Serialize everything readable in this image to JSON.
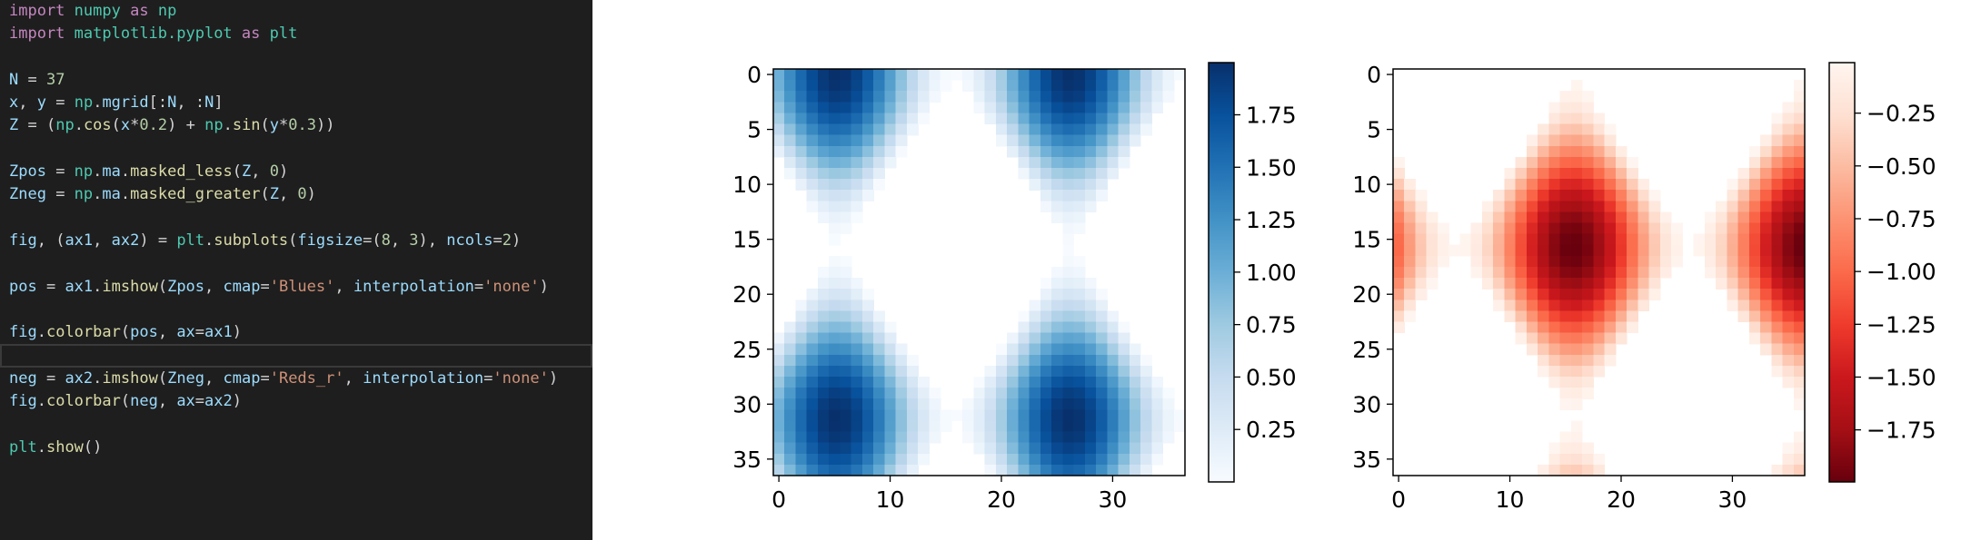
{
  "editor": {
    "lines": [
      [
        [
          "kw",
          "import"
        ],
        [
          "id",
          " "
        ],
        [
          "mod",
          "numpy"
        ],
        [
          "id",
          " "
        ],
        [
          "kw",
          "as"
        ],
        [
          "id",
          " "
        ],
        [
          "mod",
          "np"
        ]
      ],
      [
        [
          "kw",
          "import"
        ],
        [
          "id",
          " "
        ],
        [
          "mod",
          "matplotlib.pyplot"
        ],
        [
          "id",
          " "
        ],
        [
          "kw",
          "as"
        ],
        [
          "id",
          " "
        ],
        [
          "mod",
          "plt"
        ]
      ],
      [],
      [
        [
          "var",
          "N"
        ],
        [
          "op",
          " = "
        ],
        [
          "num",
          "37"
        ]
      ],
      [
        [
          "var",
          "x"
        ],
        [
          "op",
          ", "
        ],
        [
          "var",
          "y"
        ],
        [
          "op",
          " = "
        ],
        [
          "mod",
          "np"
        ],
        [
          "op",
          "."
        ],
        [
          "var",
          "mgrid"
        ],
        [
          "op",
          "[:"
        ],
        [
          "var",
          "N"
        ],
        [
          "op",
          ", :"
        ],
        [
          "var",
          "N"
        ],
        [
          "op",
          "]"
        ]
      ],
      [
        [
          "var",
          "Z"
        ],
        [
          "op",
          " = ("
        ],
        [
          "mod",
          "np"
        ],
        [
          "op",
          "."
        ],
        [
          "fn",
          "cos"
        ],
        [
          "op",
          "("
        ],
        [
          "var",
          "x"
        ],
        [
          "op",
          "*"
        ],
        [
          "num",
          "0.2"
        ],
        [
          "op",
          ") + "
        ],
        [
          "mod",
          "np"
        ],
        [
          "op",
          "."
        ],
        [
          "fn",
          "sin"
        ],
        [
          "op",
          "("
        ],
        [
          "var",
          "y"
        ],
        [
          "op",
          "*"
        ],
        [
          "num",
          "0.3"
        ],
        [
          "op",
          "))"
        ]
      ],
      [],
      [
        [
          "var",
          "Zpos"
        ],
        [
          "op",
          " = "
        ],
        [
          "mod",
          "np"
        ],
        [
          "op",
          "."
        ],
        [
          "var",
          "ma"
        ],
        [
          "op",
          "."
        ],
        [
          "fn",
          "masked_less"
        ],
        [
          "op",
          "("
        ],
        [
          "var",
          "Z"
        ],
        [
          "op",
          ", "
        ],
        [
          "num",
          "0"
        ],
        [
          "op",
          ")"
        ]
      ],
      [
        [
          "var",
          "Zneg"
        ],
        [
          "op",
          " = "
        ],
        [
          "mod",
          "np"
        ],
        [
          "op",
          "."
        ],
        [
          "var",
          "ma"
        ],
        [
          "op",
          "."
        ],
        [
          "fn",
          "masked_greater"
        ],
        [
          "op",
          "("
        ],
        [
          "var",
          "Z"
        ],
        [
          "op",
          ", "
        ],
        [
          "num",
          "0"
        ],
        [
          "op",
          ")"
        ]
      ],
      [],
      [
        [
          "var",
          "fig"
        ],
        [
          "op",
          ", ("
        ],
        [
          "var",
          "ax1"
        ],
        [
          "op",
          ", "
        ],
        [
          "var",
          "ax2"
        ],
        [
          "op",
          ") = "
        ],
        [
          "mod",
          "plt"
        ],
        [
          "op",
          "."
        ],
        [
          "fn",
          "subplots"
        ],
        [
          "op",
          "("
        ],
        [
          "var",
          "figsize"
        ],
        [
          "op",
          "=("
        ],
        [
          "num",
          "8"
        ],
        [
          "op",
          ", "
        ],
        [
          "num",
          "3"
        ],
        [
          "op",
          "), "
        ],
        [
          "var",
          "ncols"
        ],
        [
          "op",
          "="
        ],
        [
          "num",
          "2"
        ],
        [
          "op",
          ")"
        ]
      ],
      [],
      [
        [
          "var",
          "pos"
        ],
        [
          "op",
          " = "
        ],
        [
          "var",
          "ax1"
        ],
        [
          "op",
          "."
        ],
        [
          "fn",
          "imshow"
        ],
        [
          "op",
          "("
        ],
        [
          "var",
          "Zpos"
        ],
        [
          "op",
          ", "
        ],
        [
          "var",
          "cmap"
        ],
        [
          "op",
          "="
        ],
        [
          "str",
          "'Blues'"
        ],
        [
          "op",
          ", "
        ],
        [
          "var",
          "interpolation"
        ],
        [
          "op",
          "="
        ],
        [
          "str",
          "'none'"
        ],
        [
          "op",
          ")"
        ]
      ],
      [],
      [
        [
          "var",
          "fig"
        ],
        [
          "op",
          "."
        ],
        [
          "fn",
          "colorbar"
        ],
        [
          "op",
          "("
        ],
        [
          "var",
          "pos"
        ],
        [
          "op",
          ", "
        ],
        [
          "var",
          "ax"
        ],
        [
          "op",
          "="
        ],
        [
          "var",
          "ax1"
        ],
        [
          "op",
          ")"
        ]
      ],
      [],
      [
        [
          "var",
          "neg"
        ],
        [
          "op",
          " = "
        ],
        [
          "var",
          "ax2"
        ],
        [
          "op",
          "."
        ],
        [
          "fn",
          "imshow"
        ],
        [
          "op",
          "("
        ],
        [
          "var",
          "Zneg"
        ],
        [
          "op",
          ", "
        ],
        [
          "var",
          "cmap"
        ],
        [
          "op",
          "="
        ],
        [
          "str",
          "'Reds_r'"
        ],
        [
          "op",
          ", "
        ],
        [
          "var",
          "interpolation"
        ],
        [
          "op",
          "="
        ],
        [
          "str",
          "'none'"
        ],
        [
          "op",
          ")"
        ]
      ],
      [
        [
          "var",
          "fig"
        ],
        [
          "op",
          "."
        ],
        [
          "fn",
          "colorbar"
        ],
        [
          "op",
          "("
        ],
        [
          "var",
          "neg"
        ],
        [
          "op",
          ", "
        ],
        [
          "var",
          "ax"
        ],
        [
          "op",
          "="
        ],
        [
          "var",
          "ax2"
        ],
        [
          "op",
          ")"
        ]
      ],
      [],
      [
        [
          "mod",
          "plt"
        ],
        [
          "op",
          "."
        ],
        [
          "fn",
          "show"
        ],
        [
          "op",
          "()"
        ]
      ]
    ],
    "active_line": 15
  },
  "chart_data": [
    {
      "type": "heatmap",
      "title": "",
      "grid_size": 37,
      "formula": "Z = cos(x*0.2) + sin(y*0.3); x = row index, y = column index; values < 0 masked",
      "mask": "less_than_zero",
      "cmap": "Blues",
      "xticks": [
        "0",
        "10",
        "20",
        "30"
      ],
      "yticks": [
        "0",
        "5",
        "10",
        "15",
        "20",
        "25",
        "30",
        "35"
      ],
      "xlim": [
        -0.5,
        36.5
      ],
      "ylim": [
        36.5,
        -0.5
      ],
      "colorbar": {
        "range": [
          0,
          1.9987
        ],
        "ticks": [
          0.25,
          0.5,
          0.75,
          1.0,
          1.25,
          1.5,
          1.75
        ],
        "tick_labels": [
          "0.25",
          "0.50",
          "0.75",
          "1.00",
          "1.25",
          "1.50",
          "1.75"
        ],
        "colors": [
          "#f7fbff",
          "#deebf7",
          "#c6dbef",
          "#9ecae1",
          "#6baed6",
          "#4292c6",
          "#2171b5",
          "#08519c",
          "#08306b"
        ]
      }
    },
    {
      "type": "heatmap",
      "title": "",
      "grid_size": 37,
      "formula": "Z = cos(x*0.2) + sin(y*0.3); x = row index, y = column index; values > 0 masked",
      "mask": "greater_than_zero",
      "cmap": "Reds_r",
      "xticks": [
        "0",
        "10",
        "20",
        "30"
      ],
      "yticks": [
        "0",
        "5",
        "10",
        "15",
        "20",
        "25",
        "30",
        "35"
      ],
      "xlim": [
        -0.5,
        36.5
      ],
      "ylim": [
        36.5,
        -0.5
      ],
      "colorbar": {
        "range": [
          -1.9965,
          -0.0108
        ],
        "ticks": [
          -1.75,
          -1.5,
          -1.25,
          -1.0,
          -0.75,
          -0.5,
          -0.25
        ],
        "tick_labels": [
          "−1.75",
          "−1.50",
          "−1.25",
          "−1.00",
          "−0.75",
          "−0.50",
          "−0.25"
        ],
        "colors": [
          "#67000d",
          "#a50f15",
          "#cb181d",
          "#ef3b2c",
          "#fb6a4a",
          "#fc9272",
          "#fcbba1",
          "#fee0d2",
          "#fff5f0"
        ]
      }
    }
  ]
}
